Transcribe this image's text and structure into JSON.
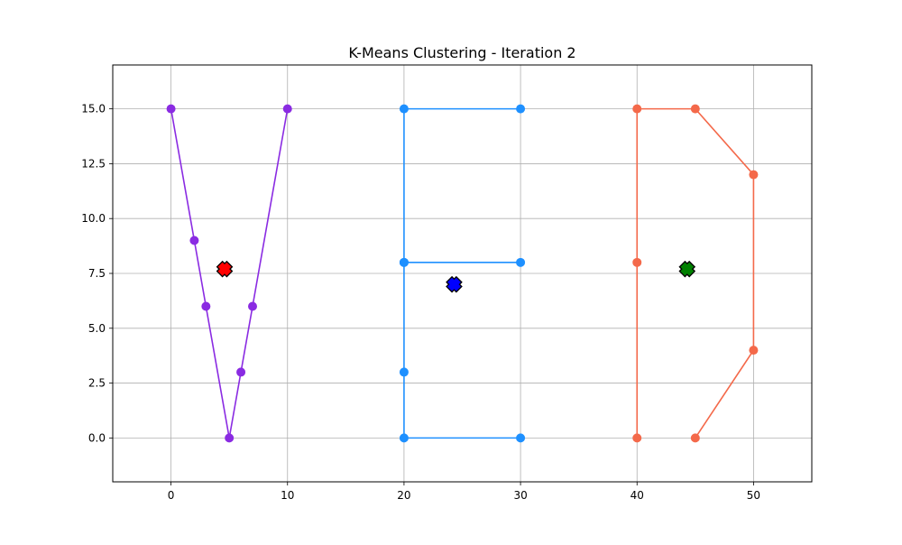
{
  "chart_data": {
    "type": "scatter",
    "title": "K-Means Clustering - Iteration 2",
    "xlabel": "",
    "ylabel": "",
    "xlim": [
      -5,
      55
    ],
    "ylim": [
      -2,
      17
    ],
    "xticks": [
      0,
      10,
      20,
      30,
      40,
      50
    ],
    "yticks": [
      0.0,
      2.5,
      5.0,
      7.5,
      10.0,
      12.5,
      15.0
    ],
    "grid": true,
    "series": [
      {
        "color": "#8a2be2",
        "connected": true,
        "points": [
          [
            0,
            15
          ],
          [
            2,
            9
          ],
          [
            3,
            6
          ],
          [
            5,
            0
          ],
          [
            6,
            3
          ],
          [
            7,
            6
          ],
          [
            10,
            15
          ]
        ]
      },
      {
        "color": "#1e90ff",
        "connected": true,
        "points": [
          [
            30,
            15
          ],
          [
            20,
            15
          ],
          [
            20,
            8
          ],
          [
            30,
            8
          ],
          [
            20,
            8
          ],
          [
            20,
            3
          ],
          [
            20,
            0
          ],
          [
            30,
            0
          ]
        ]
      },
      {
        "color": "#f4694a",
        "connected": true,
        "points": [
          [
            40,
            0
          ],
          [
            40,
            8
          ],
          [
            40,
            15
          ],
          [
            45,
            15
          ],
          [
            50,
            12
          ],
          [
            50,
            4
          ],
          [
            45,
            0
          ]
        ]
      }
    ],
    "centroids": [
      {
        "x": 4.6,
        "y": 7.7,
        "color": "#ff0000",
        "marker": "x-filled"
      },
      {
        "x": 24.3,
        "y": 7.0,
        "color": "#0000ff",
        "marker": "x-filled"
      },
      {
        "x": 44.3,
        "y": 7.7,
        "color": "#008000",
        "marker": "x-filled"
      }
    ]
  }
}
